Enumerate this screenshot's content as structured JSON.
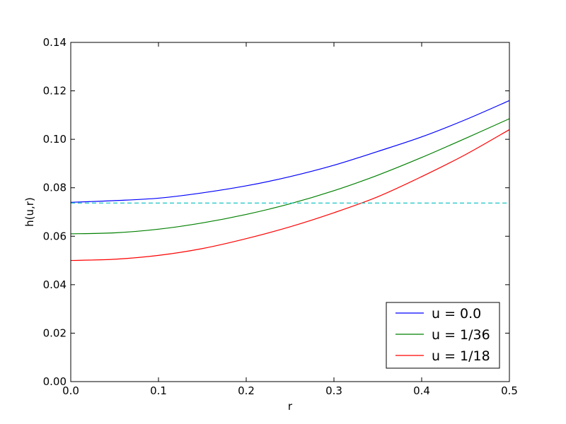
{
  "chart_data": {
    "type": "line",
    "title": "",
    "xlabel": "r",
    "ylabel": "h(u,r)",
    "xlim": [
      0.0,
      0.5
    ],
    "ylim": [
      0.0,
      0.14
    ],
    "x_ticks": [
      "0.0",
      "0.1",
      "0.2",
      "0.3",
      "0.4",
      "0.5"
    ],
    "y_ticks": [
      "0.00",
      "0.02",
      "0.04",
      "0.06",
      "0.08",
      "0.10",
      "0.12",
      "0.14"
    ],
    "grid": false,
    "legend_position": "bottom-right",
    "x": [
      0.0,
      0.05,
      0.1,
      0.15,
      0.2,
      0.25,
      0.3,
      0.35,
      0.4,
      0.45,
      0.5
    ],
    "series": [
      {
        "name": "u = 0.0",
        "color": "#0000ff",
        "style": "solid",
        "values": [
          0.074,
          0.0747,
          0.0757,
          0.0779,
          0.0808,
          0.0846,
          0.0893,
          0.095,
          0.101,
          0.1081,
          0.116
        ]
      },
      {
        "name": "u = 1/36",
        "color": "#008000",
        "style": "solid",
        "values": [
          0.061,
          0.0614,
          0.0629,
          0.0655,
          0.069,
          0.0734,
          0.0788,
          0.0852,
          0.0925,
          0.1004,
          0.1085
        ]
      },
      {
        "name": "u = 1/18",
        "color": "#ff0000",
        "style": "solid",
        "values": [
          0.05,
          0.0505,
          0.0521,
          0.0549,
          0.059,
          0.0639,
          0.0697,
          0.0763,
          0.0846,
          0.0937,
          0.104
        ]
      },
      {
        "color": "#00bfbf",
        "style": "dashed",
        "values": [
          0.0737,
          0.0737,
          0.0737,
          0.0737,
          0.0737,
          0.0737,
          0.0737,
          0.0737,
          0.0737,
          0.0737,
          0.0737
        ]
      }
    ]
  }
}
